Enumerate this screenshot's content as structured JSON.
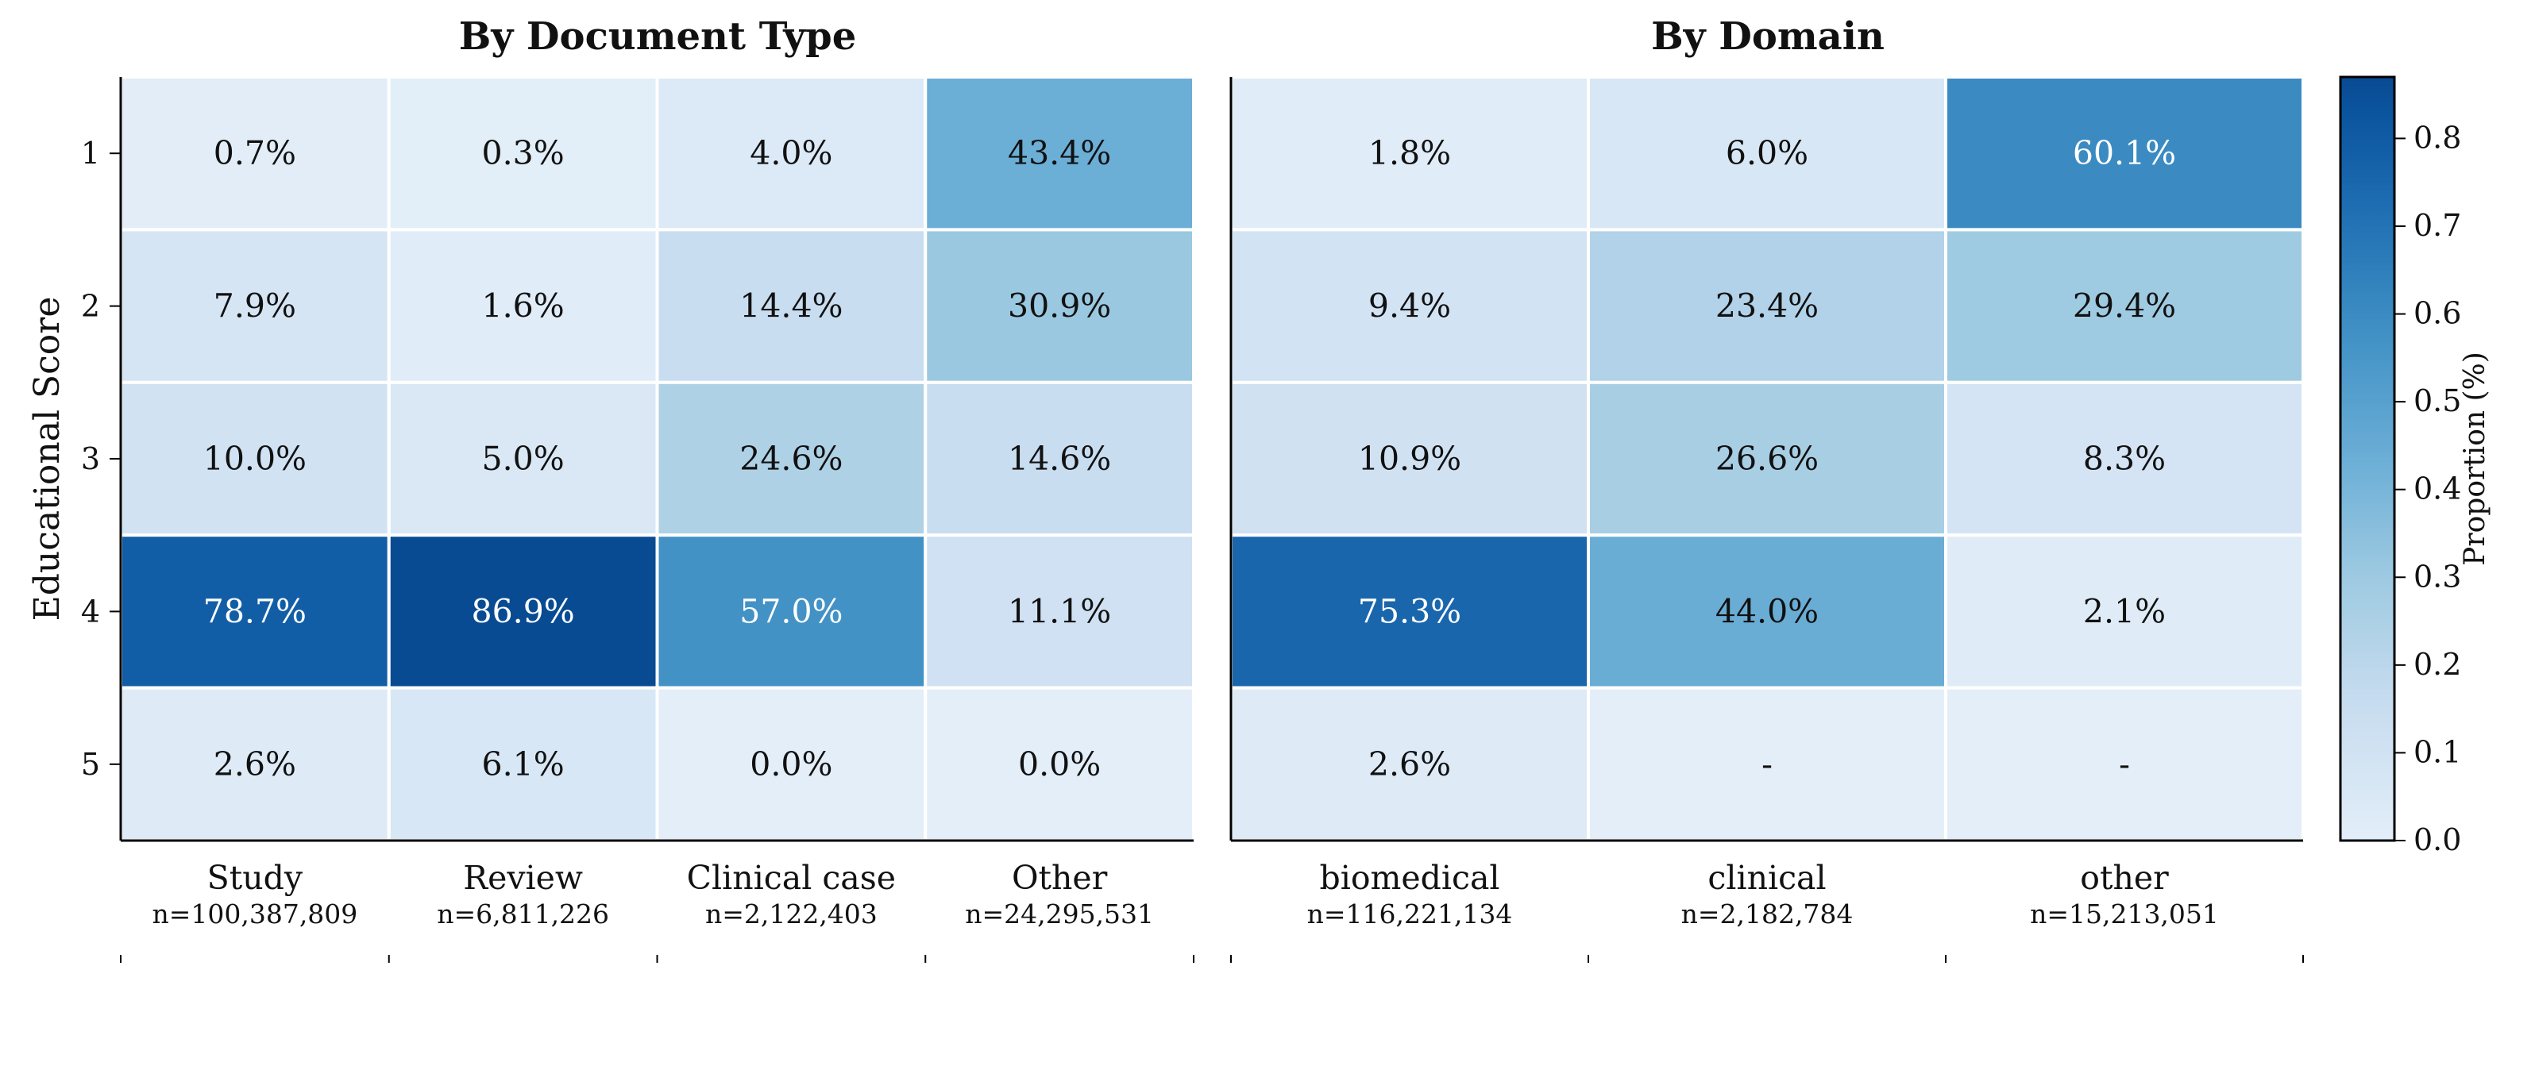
{
  "chart_data": [
    {
      "type": "heatmap",
      "title": "By Document Type",
      "ylabel": "Educational Score",
      "rows": [
        "1",
        "2",
        "3",
        "4",
        "5"
      ],
      "columns": [
        {
          "label": "Study",
          "n": "n=100,387,809"
        },
        {
          "label": "Review",
          "n": "n=6,811,226"
        },
        {
          "label": "Clinical case",
          "n": "n=2,122,403"
        },
        {
          "label": "Other",
          "n": "n=24,295,531"
        }
      ],
      "values": [
        [
          0.007,
          0.003,
          0.04,
          0.434
        ],
        [
          0.079,
          0.016,
          0.144,
          0.309
        ],
        [
          0.1,
          0.05,
          0.246,
          0.146
        ],
        [
          0.787,
          0.869,
          0.57,
          0.111
        ],
        [
          0.026,
          0.061,
          0.0,
          0.0
        ]
      ],
      "labels": [
        [
          "0.7%",
          "0.3%",
          "4.0%",
          "43.4%"
        ],
        [
          "7.9%",
          "1.6%",
          "14.4%",
          "30.9%"
        ],
        [
          "10.0%",
          "5.0%",
          "24.6%",
          "14.6%"
        ],
        [
          "78.7%",
          "86.9%",
          "57.0%",
          "11.1%"
        ],
        [
          "2.6%",
          "6.1%",
          "0.0%",
          "0.0%"
        ]
      ]
    },
    {
      "type": "heatmap",
      "title": "By Domain",
      "rows": [
        "1",
        "2",
        "3",
        "4",
        "5"
      ],
      "columns": [
        {
          "label": "biomedical",
          "n": "n=116,221,134"
        },
        {
          "label": "clinical",
          "n": "n=2,182,784"
        },
        {
          "label": "other",
          "n": "n=15,213,051"
        }
      ],
      "values": [
        [
          0.018,
          0.06,
          0.601
        ],
        [
          0.094,
          0.234,
          0.294
        ],
        [
          0.109,
          0.266,
          0.083
        ],
        [
          0.753,
          0.44,
          0.021
        ],
        [
          0.026,
          null,
          null
        ]
      ],
      "labels": [
        [
          "1.8%",
          "6.0%",
          "60.1%"
        ],
        [
          "9.4%",
          "23.4%",
          "29.4%"
        ],
        [
          "10.9%",
          "26.6%",
          "8.3%"
        ],
        [
          "75.3%",
          "44.0%",
          "2.1%"
        ],
        [
          "2.6%",
          "-",
          "-"
        ]
      ]
    }
  ],
  "colorbar": {
    "label": "Proportion (%)",
    "range": [
      0,
      0.87
    ],
    "ticks": [
      "0.0",
      "0.1",
      "0.2",
      "0.3",
      "0.4",
      "0.5",
      "0.6",
      "0.7",
      "0.8"
    ],
    "colormap": "Blues"
  }
}
